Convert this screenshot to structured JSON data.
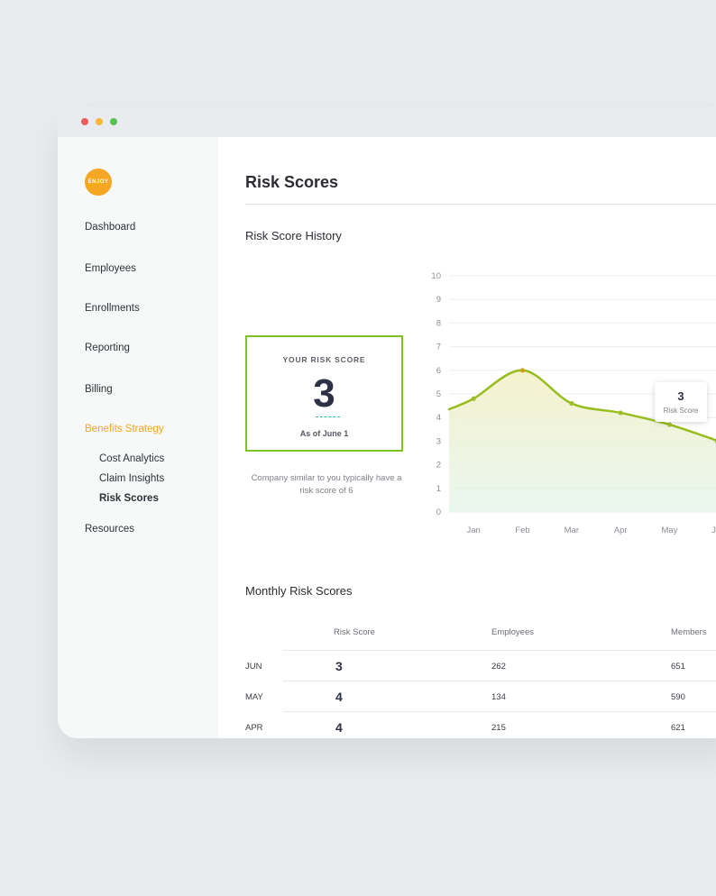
{
  "colors": {
    "accent": "#f5a623",
    "card_border": "#7ec226",
    "line": "#97bd1c"
  },
  "window": {
    "controls": [
      "close",
      "minimize",
      "maximize"
    ]
  },
  "brand": {
    "logo_text": "ENJOY"
  },
  "sidebar": {
    "items": [
      {
        "label": "Dashboard"
      },
      {
        "label": "Employees"
      },
      {
        "label": "Enrollments"
      },
      {
        "label": "Reporting"
      },
      {
        "label": "Billing"
      },
      {
        "label": "Benefits Strategy",
        "active": true
      },
      {
        "label": "Resources"
      }
    ],
    "subitems": [
      {
        "label": "Cost Analytics"
      },
      {
        "label": "Claim Insights"
      },
      {
        "label": "Risk Scores",
        "active": true
      }
    ]
  },
  "page": {
    "title": "Risk Scores"
  },
  "history": {
    "title": "Risk Score History"
  },
  "score_card": {
    "label": "YOUR RISK SCORE",
    "value": "3",
    "as_of": "As of June 1",
    "note": "Company similar to you typically have a risk score of 6"
  },
  "tooltip": {
    "value": "3",
    "label": "Risk Score"
  },
  "chart_data": {
    "type": "area",
    "categories": [
      "Jan",
      "Feb",
      "Mar",
      "Apr",
      "May",
      "Jun"
    ],
    "x": [
      0,
      1,
      2,
      3,
      4,
      5
    ],
    "values": [
      4.8,
      6.0,
      4.6,
      4.2,
      3.7,
      3.0
    ],
    "yticks": [
      0,
      1,
      2,
      3,
      4,
      5,
      6,
      7,
      8,
      9,
      10
    ],
    "ylim": [
      0,
      10
    ],
    "xlim": [
      -0.5,
      5.5
    ],
    "grid": true,
    "title": "",
    "xlabel": "",
    "ylabel": ""
  },
  "monthly": {
    "title": "Monthly Risk Scores",
    "headers": {
      "score": "Risk Score",
      "employees": "Employees",
      "members": "Members"
    },
    "rows": [
      {
        "month": "JUN",
        "score": "3",
        "employees": "262",
        "members": "651"
      },
      {
        "month": "MAY",
        "score": "4",
        "employees": "134",
        "members": "590"
      },
      {
        "month": "APR",
        "score": "4",
        "employees": "215",
        "members": "621"
      }
    ]
  }
}
